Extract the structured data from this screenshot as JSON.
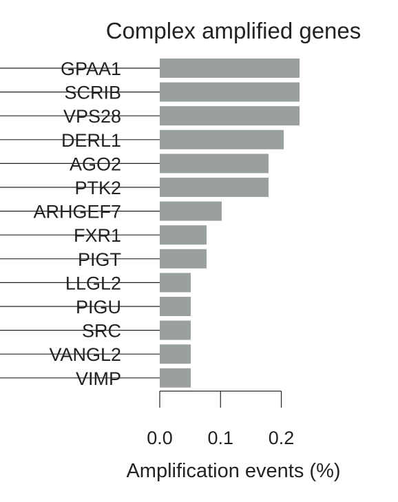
{
  "chart_data": {
    "type": "bar",
    "orientation": "horizontal",
    "title": "Complex amplified genes",
    "xlabel": "Amplification events (%)",
    "ylabel": "",
    "categories": [
      "GPAA1",
      "SCRIB",
      "VPS28",
      "DERL1",
      "AGO2",
      "PTK2",
      "ARHGEF7",
      "FXR1",
      "PIGT",
      "LLGL2",
      "PIGU",
      "SRC",
      "VANGL2",
      "VIMP"
    ],
    "values": [
      0.23,
      0.23,
      0.23,
      0.204,
      0.179,
      0.179,
      0.102,
      0.077,
      0.077,
      0.051,
      0.051,
      0.051,
      0.051,
      0.051
    ],
    "xlim": [
      0.0,
      0.23
    ],
    "xticks": [
      0.0,
      0.1,
      0.2
    ],
    "xtick_labels": [
      "0.0",
      "0.1",
      "0.2"
    ],
    "bar_color": "#9aa0a0",
    "grid": false,
    "legend": "none"
  }
}
